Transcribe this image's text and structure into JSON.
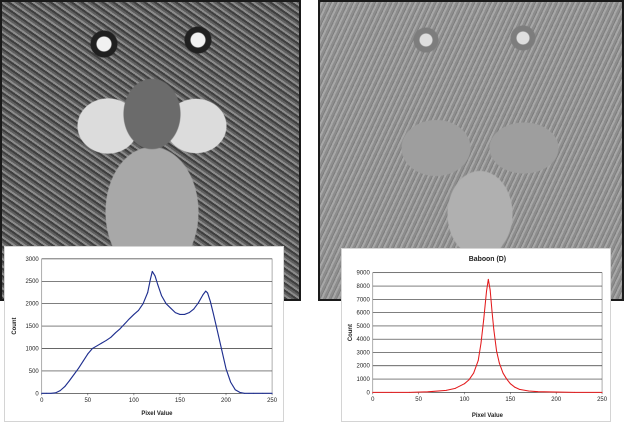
{
  "chart_data": [
    {
      "type": "line",
      "title": "",
      "xlabel": "Pixel Value",
      "ylabel": "Count",
      "xlim": [
        0,
        250
      ],
      "ylim": [
        0,
        3000
      ],
      "xticks": [
        0,
        50,
        100,
        150,
        200,
        250
      ],
      "yticks": [
        0,
        500,
        1000,
        1500,
        2000,
        2500,
        3000
      ],
      "grid": "horizontal",
      "legend": false,
      "colors": {
        "line": "#1f2f8f",
        "gridline": "#333333",
        "plot_background": "#ffffff"
      },
      "series": [
        {
          "x": [
            0,
            5,
            10,
            15,
            20,
            25,
            30,
            35,
            40,
            45,
            50,
            55,
            60,
            65,
            70,
            75,
            80,
            85,
            90,
            95,
            100,
            105,
            110,
            115,
            118,
            120,
            123,
            126,
            130,
            135,
            140,
            145,
            150,
            155,
            160,
            165,
            170,
            175,
            178,
            180,
            183,
            186,
            190,
            195,
            200,
            205,
            210,
            215,
            220,
            225,
            230,
            240,
            250
          ],
          "values": [
            0,
            0,
            0,
            10,
            60,
            150,
            280,
            420,
            560,
            720,
            880,
            1000,
            1060,
            1120,
            1180,
            1250,
            1350,
            1440,
            1550,
            1660,
            1760,
            1850,
            2000,
            2250,
            2550,
            2720,
            2620,
            2420,
            2180,
            2000,
            1900,
            1800,
            1760,
            1760,
            1800,
            1880,
            2020,
            2200,
            2280,
            2240,
            2050,
            1800,
            1450,
            1000,
            550,
            250,
            80,
            20,
            0,
            0,
            0,
            0,
            0
          ]
        }
      ]
    },
    {
      "type": "line",
      "title": "Baboon (D)",
      "xlabel": "Pixel Value",
      "ylabel": "Count",
      "xlim": [
        0,
        250
      ],
      "ylim": [
        0,
        9000
      ],
      "xticks": [
        0,
        50,
        100,
        150,
        200,
        250
      ],
      "yticks": [
        0,
        1000,
        2000,
        3000,
        4000,
        5000,
        6000,
        7000,
        8000,
        9000
      ],
      "grid": "horizontal",
      "legend": false,
      "colors": {
        "line": "#e31a1c",
        "gridline": "#333333",
        "plot_background": "#ffffff"
      },
      "series": [
        {
          "x": [
            0,
            20,
            40,
            60,
            80,
            90,
            100,
            105,
            110,
            115,
            118,
            121,
            124,
            126,
            128,
            130,
            132,
            135,
            138,
            142,
            146,
            150,
            155,
            160,
            170,
            180,
            200,
            220,
            250
          ],
          "values": [
            0,
            0,
            0,
            40,
            150,
            300,
            650,
            950,
            1450,
            2400,
            3700,
            5500,
            7600,
            8500,
            7700,
            6100,
            4700,
            3100,
            2200,
            1450,
            1000,
            650,
            380,
            220,
            100,
            50,
            20,
            0,
            0
          ]
        }
      ]
    }
  ]
}
